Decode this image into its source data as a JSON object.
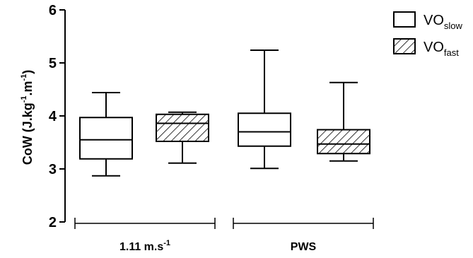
{
  "chart_data": {
    "type": "boxplot",
    "ylabel": "CoW (J.kg⁻¹.m⁻¹)",
    "ylabel_parts": [
      "CoW (J.kg",
      "-1",
      ".m",
      "-1",
      ")"
    ],
    "ylim": [
      2,
      6
    ],
    "yticks": [
      "2",
      "3",
      "4",
      "5",
      "6"
    ],
    "groups": [
      {
        "label": "1.11 m.s-1",
        "label_main": "1.11 m.s",
        "label_sup": "-1"
      },
      {
        "label": "PWS",
        "label_main": "PWS",
        "label_sup": ""
      }
    ],
    "series": [
      {
        "name": "VOslow",
        "name_main": "VO",
        "name_sub": "slow",
        "fill": "none",
        "boxes": [
          {
            "group": "1.11 m.s-1",
            "min": 2.87,
            "q1": 3.19,
            "median": 3.55,
            "q3": 3.97,
            "max": 4.44
          },
          {
            "group": "PWS",
            "min": 3.01,
            "q1": 3.43,
            "median": 3.7,
            "q3": 4.05,
            "max": 5.24
          }
        ]
      },
      {
        "name": "VOfast",
        "name_main": "VO",
        "name_sub": "fast",
        "fill": "hatched",
        "boxes": [
          {
            "group": "1.11 m.s-1",
            "min": 3.11,
            "q1": 3.52,
            "median": 3.86,
            "q3": 4.03,
            "max": 4.07
          },
          {
            "group": "PWS",
            "min": 3.15,
            "q1": 3.29,
            "median": 3.47,
            "q3": 3.74,
            "max": 4.63
          }
        ]
      }
    ],
    "legend_position": "top-right",
    "colors": {
      "stroke": "#000000",
      "background": "#ffffff",
      "hatch": "#000000"
    }
  }
}
